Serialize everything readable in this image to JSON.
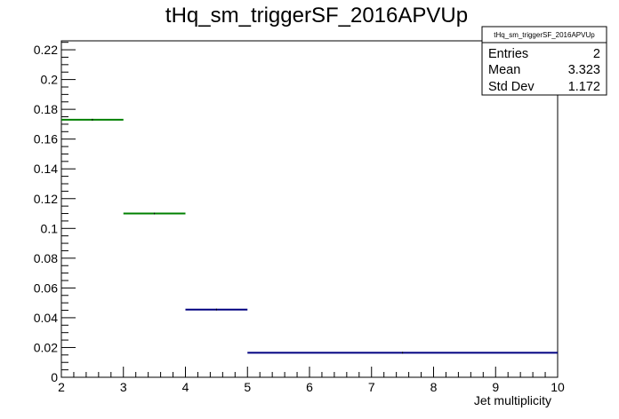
{
  "chart_data": {
    "type": "histogram",
    "title": "tHq_sm_triggerSF_2016APVUp",
    "xlabel": "Jet multiplicity",
    "ylabel": "",
    "xlim": [
      2,
      10
    ],
    "ylim": [
      0,
      0.226
    ],
    "x_ticks": [
      "2",
      "3",
      "4",
      "5",
      "6",
      "7",
      "8",
      "9",
      "10"
    ],
    "y_ticks": [
      "0",
      "0.02",
      "0.04",
      "0.06",
      "0.08",
      "0.1",
      "0.12",
      "0.14",
      "0.16",
      "0.18",
      "0.2",
      "0.22"
    ],
    "bins": [
      {
        "low": 2,
        "high": 3,
        "value": 0.173,
        "color": "#008000"
      },
      {
        "low": 3,
        "high": 4,
        "value": 0.11,
        "color": "#008000"
      },
      {
        "low": 4,
        "high": 5,
        "value": 0.0455,
        "color": "#000080"
      },
      {
        "low": 5,
        "high": 10,
        "value": 0.0165,
        "color": "#000080"
      }
    ],
    "grid": false,
    "stats_box": {
      "title": "tHq_sm_triggerSF_2016APVUp",
      "placement": "top-right",
      "rows": [
        {
          "label": "Entries",
          "value": "2"
        },
        {
          "label": "Mean",
          "value": "3.323"
        },
        {
          "label": "Std Dev",
          "value": "1.172"
        }
      ]
    }
  }
}
